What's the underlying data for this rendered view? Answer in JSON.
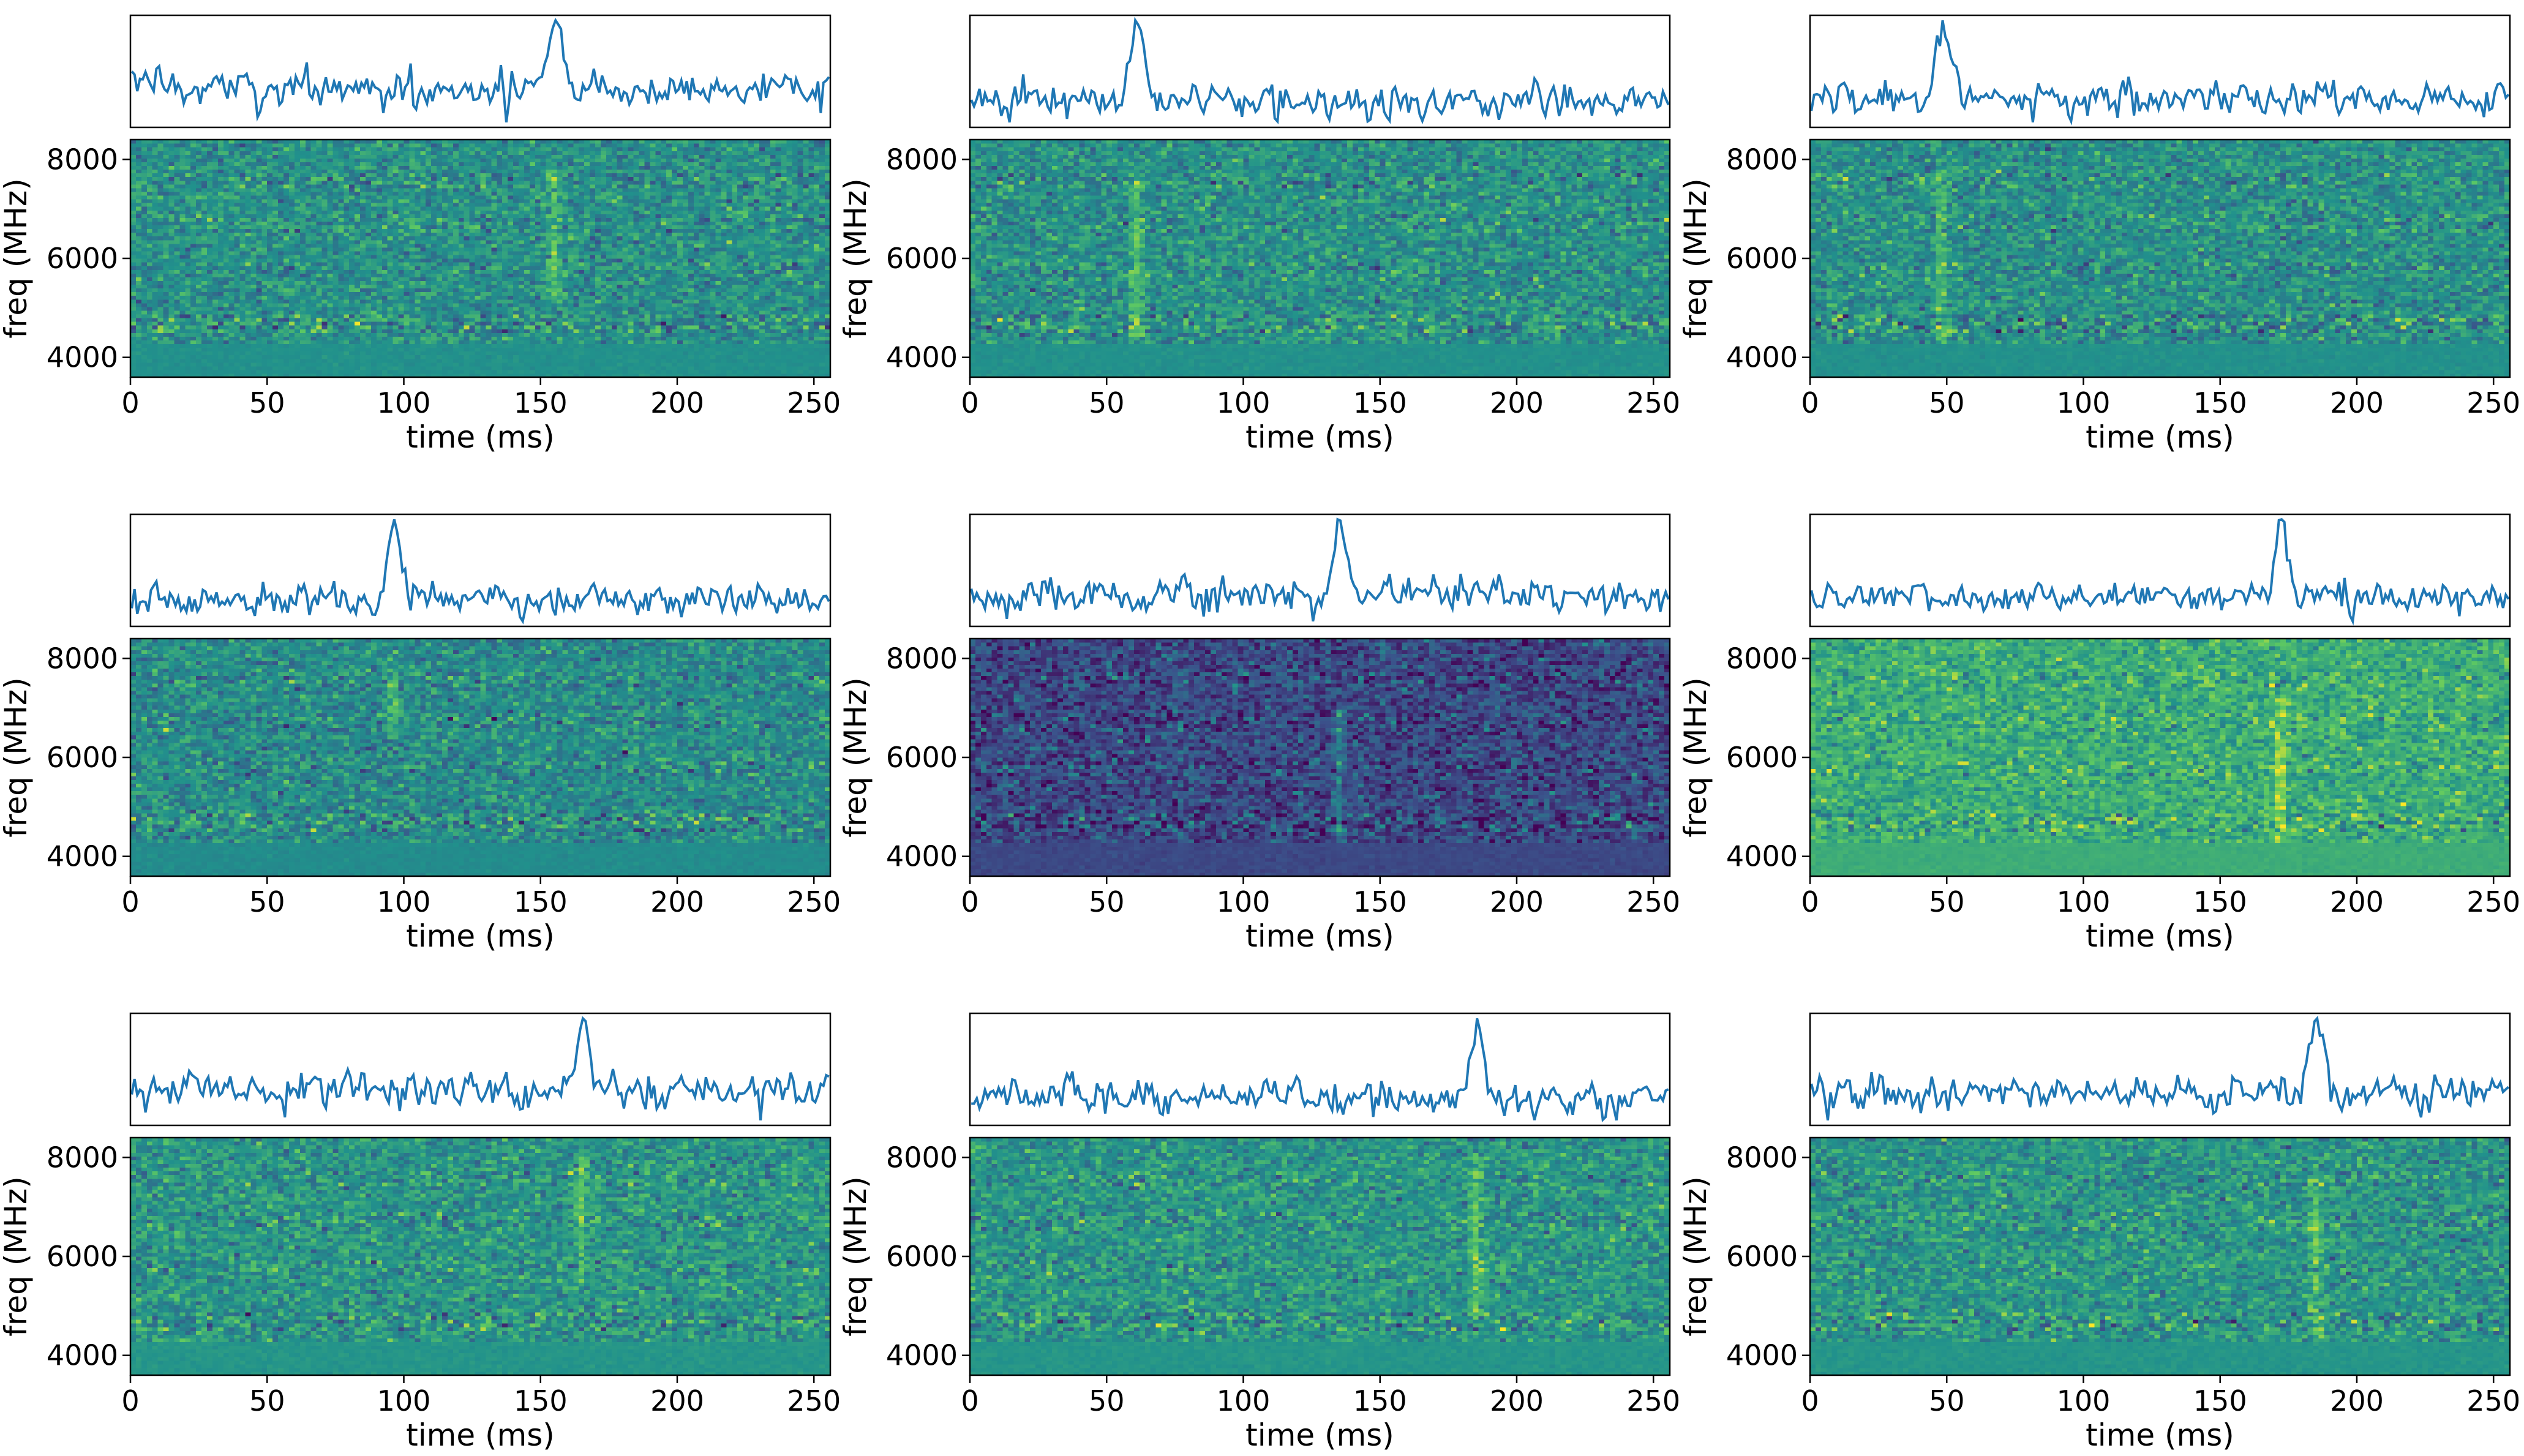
{
  "colors": {
    "line": "#1f77b4",
    "axis": "#000000",
    "viridis": [
      "#440154",
      "#3b528b",
      "#21918c",
      "#5ec962",
      "#fde725"
    ]
  },
  "chart_data": [
    {
      "type": "heatmap",
      "xlabel": "time (ms)",
      "ylabel": "freq (MHz)",
      "xlim": [
        0,
        256
      ],
      "ylim": [
        3600,
        8400
      ],
      "xticks": [
        "0",
        "50",
        "100",
        "150",
        "200",
        "250"
      ],
      "yticks": [
        "4000",
        "6000",
        "8000"
      ],
      "pulse_time_ms": 155,
      "pulse_freq_range_mhz": [
        5200,
        7800
      ],
      "background_level": 0.5
    },
    {
      "type": "heatmap",
      "xlabel": "time (ms)",
      "ylabel": "freq (MHz)",
      "xlim": [
        0,
        256
      ],
      "ylim": [
        3600,
        8400
      ],
      "xticks": [
        "0",
        "50",
        "100",
        "150",
        "200",
        "250"
      ],
      "yticks": [
        "4000",
        "6000",
        "8000"
      ],
      "pulse_time_ms": 61,
      "pulse_freq_range_mhz": [
        4400,
        7600
      ],
      "background_level": 0.5
    },
    {
      "type": "heatmap",
      "xlabel": "time (ms)",
      "ylabel": "freq (MHz)",
      "xlim": [
        0,
        256
      ],
      "ylim": [
        3600,
        8400
      ],
      "xticks": [
        "0",
        "50",
        "100",
        "150",
        "200",
        "250"
      ],
      "yticks": [
        "4000",
        "6000",
        "8000"
      ],
      "pulse_time_ms": 48,
      "pulse_freq_range_mhz": [
        4200,
        7800
      ],
      "background_level": 0.5
    },
    {
      "type": "heatmap",
      "xlabel": "time (ms)",
      "ylabel": "freq (MHz)",
      "xlim": [
        0,
        256
      ],
      "ylim": [
        3600,
        8400
      ],
      "xticks": [
        "0",
        "50",
        "100",
        "150",
        "200",
        "250"
      ],
      "yticks": [
        "4000",
        "6000",
        "8000"
      ],
      "pulse_time_ms": 96,
      "pulse_freq_range_mhz": [
        6400,
        7800
      ],
      "background_level": 0.48
    },
    {
      "type": "heatmap",
      "xlabel": "time (ms)",
      "ylabel": "freq (MHz)",
      "xlim": [
        0,
        256
      ],
      "ylim": [
        3600,
        8400
      ],
      "xticks": [
        "0",
        "50",
        "100",
        "150",
        "200",
        "250"
      ],
      "yticks": [
        "4000",
        "6000",
        "8000"
      ],
      "pulse_time_ms": 135,
      "pulse_freq_range_mhz": [
        4000,
        7000
      ],
      "background_level": 0.22
    },
    {
      "type": "heatmap",
      "xlabel": "time (ms)",
      "ylabel": "freq (MHz)",
      "xlim": [
        0,
        256
      ],
      "ylim": [
        3600,
        8400
      ],
      "xticks": [
        "0",
        "50",
        "100",
        "150",
        "200",
        "250"
      ],
      "yticks": [
        "4000",
        "6000",
        "8000"
      ],
      "pulse_time_ms": 172,
      "pulse_freq_range_mhz": [
        4000,
        7200
      ],
      "background_level": 0.62
    },
    {
      "type": "heatmap",
      "xlabel": "time (ms)",
      "ylabel": "freq (MHz)",
      "xlim": [
        0,
        256
      ],
      "ylim": [
        3600,
        8400
      ],
      "xticks": [
        "0",
        "50",
        "100",
        "150",
        "200",
        "250"
      ],
      "yticks": [
        "4000",
        "6000",
        "8000"
      ],
      "pulse_time_ms": 165,
      "pulse_freq_range_mhz": [
        5400,
        8000
      ],
      "background_level": 0.52
    },
    {
      "type": "heatmap",
      "xlabel": "time (ms)",
      "ylabel": "freq (MHz)",
      "xlim": [
        0,
        256
      ],
      "ylim": [
        3600,
        8400
      ],
      "xticks": [
        "0",
        "50",
        "100",
        "150",
        "200",
        "250"
      ],
      "yticks": [
        "4000",
        "6000",
        "8000"
      ],
      "pulse_time_ms": 185,
      "pulse_freq_range_mhz": [
        4800,
        8000
      ],
      "background_level": 0.52
    },
    {
      "type": "heatmap",
      "xlabel": "time (ms)",
      "ylabel": "freq (MHz)",
      "xlim": [
        0,
        256
      ],
      "ylim": [
        3600,
        8400
      ],
      "xticks": [
        "0",
        "50",
        "100",
        "150",
        "200",
        "250"
      ],
      "yticks": [
        "4000",
        "6000",
        "8000"
      ],
      "pulse_time_ms": 185,
      "pulse_freq_range_mhz": [
        4400,
        7600
      ],
      "background_level": 0.52
    }
  ]
}
